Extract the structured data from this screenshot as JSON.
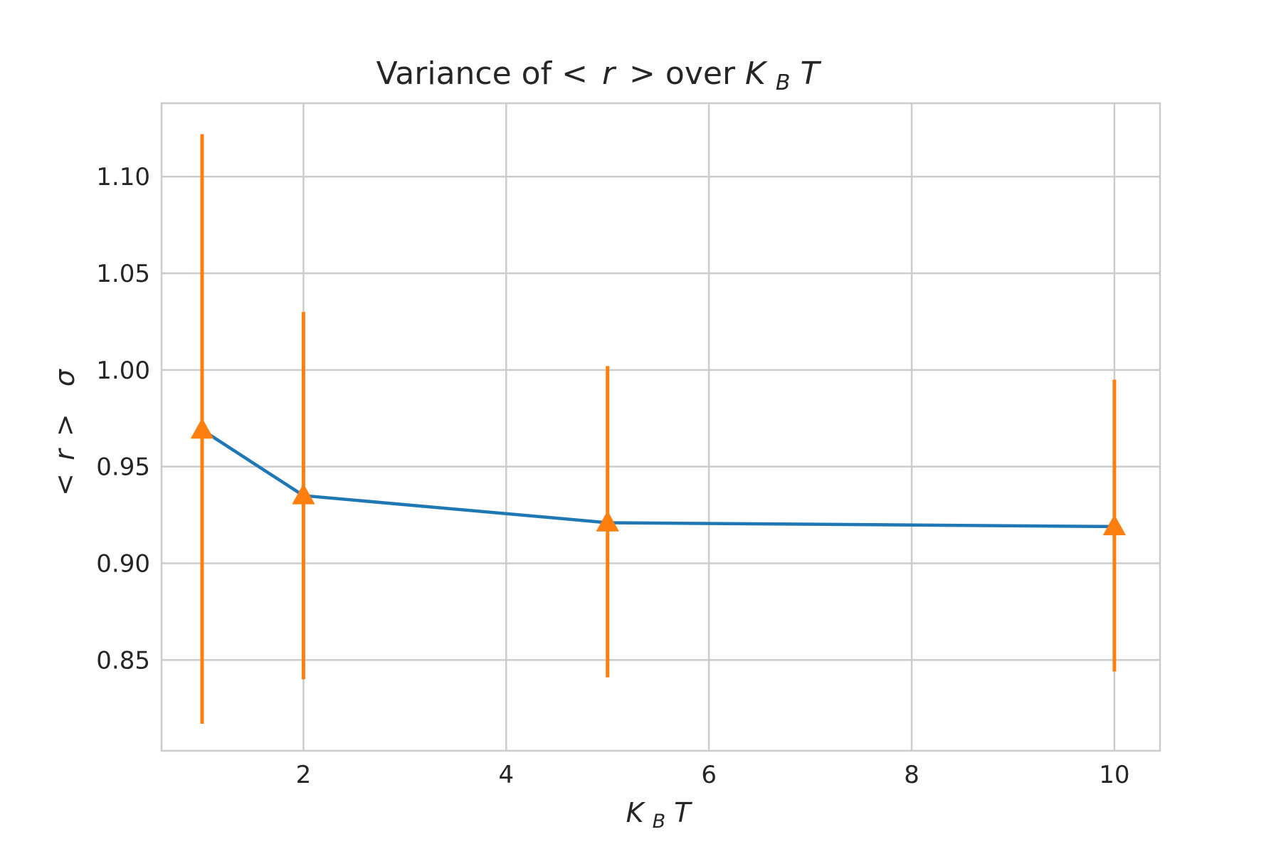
{
  "chart_data": {
    "type": "line",
    "title": {
      "prefix": "Variance of ",
      "math_lt": "<",
      "math_r": "r",
      "math_gt": ">",
      "middle": " over ",
      "math_K": "K",
      "math_sub": "B",
      "math_T": "T"
    },
    "xlabel": {
      "K": "K",
      "sub": "B",
      "T": "T"
    },
    "ylabel": {
      "lt": "<",
      "r": "r",
      "gt": ">",
      "sigma": "σ"
    },
    "x_ticks": [
      "2",
      "4",
      "6",
      "8",
      "10"
    ],
    "y_ticks": [
      "0.85",
      "0.90",
      "0.95",
      "1.00",
      "1.05",
      "1.10"
    ],
    "xlim": [
      0.6,
      10.45
    ],
    "ylim": [
      0.803,
      1.138
    ],
    "grid": true,
    "series": [
      {
        "x": [
          1,
          2,
          5,
          10
        ],
        "y": [
          0.969,
          0.935,
          0.921,
          0.919
        ],
        "yerr_low": [
          0.817,
          0.84,
          0.841,
          0.844
        ],
        "yerr_high": [
          1.122,
          1.03,
          1.002,
          0.995
        ],
        "line_color": "#1f77b4",
        "marker_color": "#ff7f0e",
        "marker": "triangle"
      }
    ]
  }
}
